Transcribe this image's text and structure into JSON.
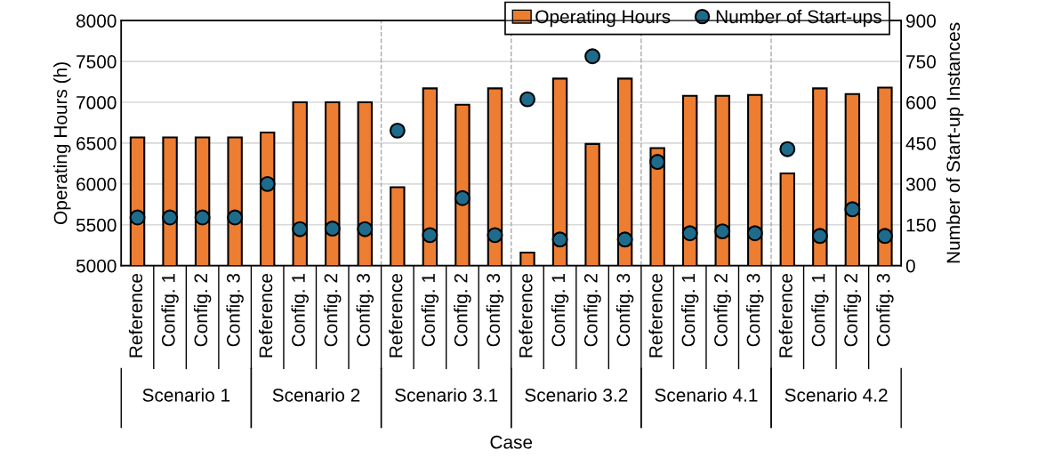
{
  "chart_data": {
    "type": "bar",
    "xlabel": "Case",
    "ylabel": "Operating Hours (h)",
    "y2label": "Number of Start-up Instances",
    "categories": [
      "Reference",
      "Config. 1",
      "Config. 2",
      "Config. 3",
      "Reference",
      "Config. 1",
      "Config. 2",
      "Config. 3",
      "Reference",
      "Config. 1",
      "Config. 2",
      "Config. 3",
      "Reference",
      "Config. 1",
      "Config. 2",
      "Config. 3",
      "Reference",
      "Config. 1",
      "Config. 2",
      "Config. 3",
      "Reference",
      "Config. 1",
      "Config. 2",
      "Config. 3"
    ],
    "annotations": [
      "Scenario 1",
      "Scenario 2",
      "Scenario 3.1",
      "Scenario 3.2",
      "Scenario 4.1",
      "Scenario 4.2"
    ],
    "series": [
      {
        "name": "Operating Hours",
        "color": "#ed7d31",
        "values": [
          6570,
          6570,
          6570,
          6570,
          6630,
          7000,
          7000,
          7000,
          5960,
          7170,
          6970,
          7170,
          5160,
          7290,
          6490,
          7290,
          6440,
          7080,
          7080,
          7090,
          6130,
          7170,
          7100,
          7180
        ]
      },
      {
        "name": "Number of Start-ups",
        "type": "scatter",
        "axis": "y2",
        "color": "#1f6b8c",
        "values": [
          177,
          177,
          177,
          177,
          300,
          134,
          136,
          134,
          496,
          112,
          248,
          112,
          611,
          96,
          769,
          96,
          381,
          119,
          126,
          119,
          428,
          109,
          207,
          109
        ]
      }
    ],
    "ylim": [
      5000,
      8000
    ],
    "yticks": [
      5000,
      5500,
      6000,
      6500,
      7000,
      7500,
      8000
    ],
    "y2lim": [
      0,
      900
    ],
    "y2ticks": [
      0,
      150,
      300,
      450,
      600,
      750,
      900
    ],
    "grid": "y",
    "legend": "top right",
    "marker": "circle"
  }
}
